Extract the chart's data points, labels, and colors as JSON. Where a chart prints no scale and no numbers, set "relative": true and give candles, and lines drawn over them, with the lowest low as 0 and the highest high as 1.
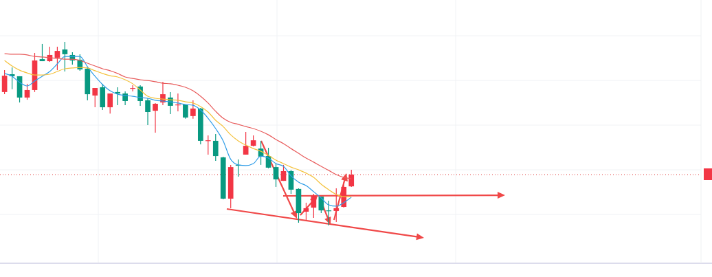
{
  "chart_data": {
    "type": "candlestick",
    "relative": true,
    "legend": false,
    "categories": [
      null,
      null,
      null,
      null,
      null,
      null,
      null,
      null,
      null,
      null,
      null,
      null,
      null,
      null,
      null,
      null,
      null,
      null,
      null,
      null,
      null,
      null,
      null,
      null,
      null,
      null,
      null,
      null,
      null,
      null,
      null,
      null,
      null,
      null,
      null,
      null,
      null,
      null,
      null,
      null,
      null,
      null,
      null,
      null,
      null,
      null,
      null
    ],
    "ohlc": [
      [
        0.727,
        0.846,
        0.715,
        0.816
      ],
      [
        0.824,
        0.861,
        0.742,
        0.813
      ],
      [
        0.813,
        0.813,
        0.67,
        0.697
      ],
      [
        0.697,
        0.772,
        0.685,
        0.738
      ],
      [
        0.738,
        0.94,
        0.727,
        0.899
      ],
      [
        0.906,
        0.989,
        0.895,
        0.895
      ],
      [
        0.895,
        0.974,
        0.891,
        0.929
      ],
      [
        0.914,
        0.974,
        0.846,
        0.951
      ],
      [
        0.959,
        1.0,
        0.839,
        0.933
      ],
      [
        0.929,
        0.944,
        0.876,
        0.899
      ],
      [
        0.903,
        0.933,
        0.843,
        0.85
      ],
      [
        0.854,
        0.865,
        0.682,
        0.715
      ],
      [
        0.708,
        0.749,
        0.644,
        0.749
      ],
      [
        0.753,
        0.772,
        0.629,
        0.644
      ],
      [
        0.644,
        0.719,
        0.61,
        0.719
      ],
      [
        0.727,
        0.753,
        0.655,
        0.719
      ],
      [
        0.719,
        0.73,
        0.655,
        0.678
      ],
      [
        0.745,
        0.764,
        0.73,
        0.749
      ],
      [
        0.757,
        0.764,
        0.652,
        0.678
      ],
      [
        0.682,
        0.693,
        0.547,
        0.618
      ],
      [
        0.625,
        0.667,
        0.506,
        0.663
      ],
      [
        0.67,
        0.783,
        0.655,
        0.715
      ],
      [
        0.697,
        0.727,
        0.607,
        0.652
      ],
      [
        0.655,
        0.719,
        0.622,
        0.659
      ],
      [
        0.659,
        0.659,
        0.581,
        0.588
      ],
      [
        0.596,
        0.682,
        0.581,
        0.637
      ],
      [
        0.637,
        0.64,
        0.442,
        0.461
      ],
      [
        0.461,
        0.491,
        0.386,
        0.464
      ],
      [
        0.461,
        0.498,
        0.352,
        0.378
      ],
      [
        0.371,
        0.375,
        0.142,
        0.146
      ],
      [
        0.146,
        0.33,
        0.094,
        0.318
      ],
      [
        0.33,
        0.36,
        0.266,
        0.326
      ],
      [
        0.386,
        0.509,
        0.386,
        0.434
      ],
      [
        0.434,
        0.491,
        0.431,
        0.464
      ],
      [
        0.419,
        0.461,
        0.33,
        0.375
      ],
      [
        0.378,
        0.423,
        0.311,
        0.315
      ],
      [
        0.318,
        0.337,
        0.21,
        0.251
      ],
      [
        0.243,
        0.33,
        0.243,
        0.296
      ],
      [
        0.296,
        0.303,
        0.172,
        0.195
      ],
      [
        0.199,
        0.202,
        0.015,
        0.067
      ],
      [
        0.075,
        0.124,
        0.03,
        0.094
      ],
      [
        0.097,
        0.172,
        0.041,
        0.161
      ],
      [
        0.157,
        0.157,
        0.067,
        0.082
      ],
      [
        0.082,
        0.135,
        0.0,
        0.079
      ],
      [
        0.079,
        0.202,
        0.019,
        0.094
      ],
      [
        0.101,
        0.236,
        0.097,
        0.21
      ],
      [
        0.213,
        0.303,
        0.21,
        0.277
      ]
    ],
    "colors": [
      "#f23645",
      "#089981",
      "#089981",
      "#f23645",
      "#f23645",
      "#089981",
      "#f23645",
      "#f23645",
      "#089981",
      "#089981",
      "#089981",
      "#089981",
      "#f23645",
      "#089981",
      "#f23645",
      "#089981",
      "#089981",
      "#f23645",
      "#089981",
      "#089981",
      "#f23645",
      "#f23645",
      "#089981",
      "#f23645",
      "#089981",
      "#f23645",
      "#089981",
      "#f23645",
      "#089981",
      "#089981",
      "#f23645",
      "#089981",
      "#f23645",
      "#f23645",
      "#089981",
      "#089981",
      "#089981",
      "#f23645",
      "#089981",
      "#089981",
      "#f23645",
      "#f23645",
      "#089981",
      "#089981",
      "#f23645",
      "#f23645",
      "#f23645"
    ],
    "series": [
      {
        "type": "line",
        "color": "#2f9de8",
        "values": [
          0.828,
          0.813,
          0.779,
          0.76,
          0.787,
          0.813,
          0.839,
          0.88,
          0.921,
          0.921,
          0.921,
          0.865,
          0.813,
          0.768,
          0.734,
          0.715,
          0.708,
          0.704,
          0.697,
          0.693,
          0.682,
          0.678,
          0.674,
          0.667,
          0.659,
          0.655,
          0.629,
          0.584,
          0.528,
          0.461,
          0.36,
          0.33,
          0.326,
          0.337,
          0.378,
          0.367,
          0.337,
          0.322,
          0.27,
          0.236,
          0.217,
          0.184,
          0.15,
          0.112,
          0.105,
          0.124,
          0.154
        ]
      },
      {
        "type": "line",
        "color": "#f4c23c",
        "values": [
          0.899,
          0.869,
          0.846,
          0.831,
          0.82,
          0.82,
          0.824,
          0.839,
          0.854,
          0.858,
          0.861,
          0.858,
          0.843,
          0.828,
          0.816,
          0.809,
          0.794,
          0.772,
          0.738,
          0.704,
          0.693,
          0.689,
          0.685,
          0.682,
          0.674,
          0.667,
          0.648,
          0.618,
          0.573,
          0.539,
          0.494,
          0.461,
          0.438,
          0.419,
          0.404,
          0.382,
          0.356,
          0.337,
          0.318,
          0.303,
          0.285,
          0.262,
          0.225,
          0.195,
          0.169,
          0.157,
          0.157
        ]
      },
      {
        "type": "line",
        "color": "#e85a5a",
        "values": [
          0.936,
          0.933,
          0.933,
          0.929,
          0.921,
          0.918,
          0.914,
          0.91,
          0.906,
          0.906,
          0.899,
          0.884,
          0.869,
          0.854,
          0.843,
          0.828,
          0.809,
          0.801,
          0.794,
          0.79,
          0.783,
          0.775,
          0.772,
          0.764,
          0.753,
          0.734,
          0.704,
          0.667,
          0.622,
          0.584,
          0.562,
          0.551,
          0.539,
          0.528,
          0.513,
          0.494,
          0.468,
          0.446,
          0.419,
          0.393,
          0.367,
          0.345,
          0.322,
          0.3,
          0.277,
          0.262,
          0.255
        ]
      }
    ],
    "ref_lines": [
      {
        "axis": "y",
        "value": 0.277,
        "color": "#e03a3a",
        "line_style": "dotted"
      }
    ]
  }
}
